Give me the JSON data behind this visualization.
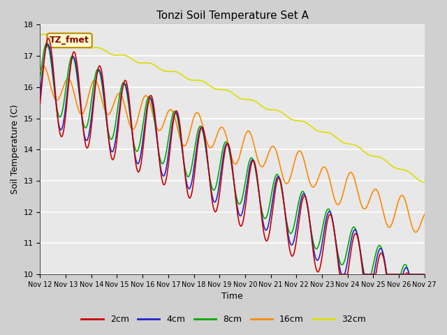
{
  "title": "Tonzi Soil Temperature Set A",
  "xlabel": "Time",
  "ylabel": "Soil Temperature (C)",
  "ylim": [
    10.0,
    18.0
  ],
  "yticks": [
    10.0,
    11.0,
    12.0,
    13.0,
    14.0,
    15.0,
    16.0,
    17.0,
    18.0
  ],
  "xtick_labels": [
    "Nov 12",
    "Nov 13",
    "Nov 14",
    "Nov 15",
    "Nov 16",
    "Nov 17",
    "Nov 18",
    "Nov 19",
    "Nov 20",
    "Nov 21",
    "Nov 22",
    "Nov 23",
    "Nov 24",
    "Nov 25",
    "Nov 26",
    "Nov 27"
  ],
  "colors": {
    "2cm": "#cc0000",
    "4cm": "#2222cc",
    "8cm": "#00aa00",
    "16cm": "#ff8800",
    "32cm": "#dddd00"
  },
  "annotation_text": "TZ_fmet",
  "annotation_color": "#8b0000",
  "annotation_bg": "#ffffcc",
  "annotation_edge": "#bb8800",
  "fig_bg": "#d0d0d0",
  "plot_bg": "#e8e8e8"
}
